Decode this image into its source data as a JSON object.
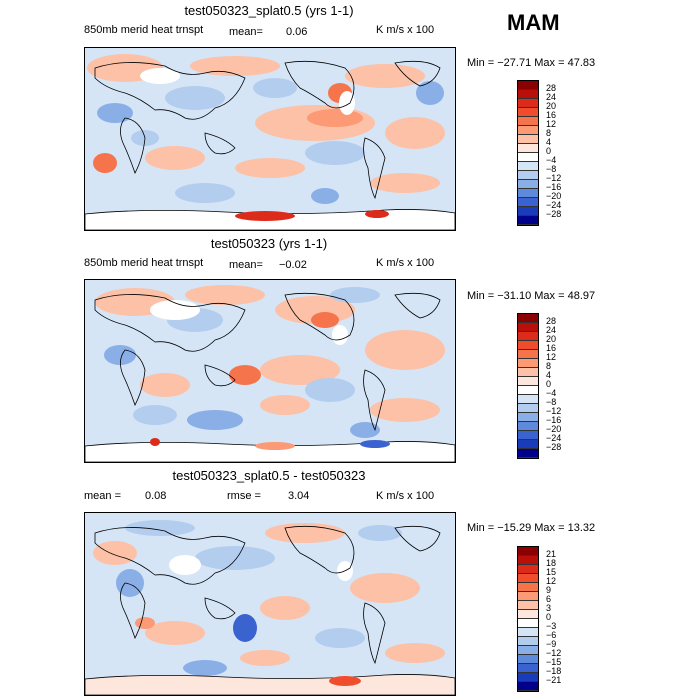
{
  "season": "MAM",
  "panels": [
    {
      "title": "test050323_splat0.5 (yrs 1-1)",
      "left_label": "850mb merid heat trnspt",
      "mean_label": "mean=",
      "mean_value": "0.06",
      "units": "K m/s x 100",
      "minmax": "Min = −27.71 Max =   47.83",
      "levels": [
        "28",
        "24",
        "20",
        "16",
        "12",
        "8",
        "4",
        "0",
        "−4",
        "−8",
        "−12",
        "−16",
        "−20",
        "−24",
        "−28"
      ],
      "colors": [
        "#8b0000",
        "#b80f0a",
        "#dc2b1a",
        "#ef4d2c",
        "#f6744b",
        "#fb9a74",
        "#fcc1a6",
        "#fde7dc",
        "#ffffff",
        "#d5e5f6",
        "#b3cdef",
        "#8aaee6",
        "#5f8adb",
        "#3a63cf",
        "#1a3cbb",
        "#00008b"
      ]
    },
    {
      "title": "test050323 (yrs 1-1)",
      "left_label": "850mb merid heat trnspt",
      "mean_label": "mean=",
      "mean_value": "−0.02",
      "units": "K m/s x 100",
      "minmax": "Min = −31.10 Max =   48.97",
      "levels": [
        "28",
        "24",
        "20",
        "16",
        "12",
        "8",
        "4",
        "0",
        "−4",
        "−8",
        "−12",
        "−16",
        "−20",
        "−24",
        "−28"
      ],
      "colors": [
        "#8b0000",
        "#b80f0a",
        "#dc2b1a",
        "#ef4d2c",
        "#f6744b",
        "#fb9a74",
        "#fcc1a6",
        "#fde7dc",
        "#ffffff",
        "#d5e5f6",
        "#b3cdef",
        "#8aaee6",
        "#5f8adb",
        "#3a63cf",
        "#1a3cbb",
        "#00008b"
      ]
    },
    {
      "title": "test050323_splat0.5 - test050323",
      "left_label": "mean =",
      "mean_label": "",
      "mean_value": "0.08",
      "rmse_label": "rmse =",
      "rmse_value": "3.04",
      "units": "K m/s x 100",
      "minmax": "Min = −15.29 Max =   13.32",
      "levels": [
        "21",
        "18",
        "15",
        "12",
        "9",
        "6",
        "3",
        "0",
        "−3",
        "−6",
        "−9",
        "−12",
        "−15",
        "−18",
        "−21"
      ],
      "colors": [
        "#8b0000",
        "#b80f0a",
        "#dc2b1a",
        "#ef4d2c",
        "#f6744b",
        "#fb9a74",
        "#fcc1a6",
        "#fde7dc",
        "#ffffff",
        "#d5e5f6",
        "#b3cdef",
        "#8aaee6",
        "#5f8adb",
        "#3a63cf",
        "#1a3cbb",
        "#00008b"
      ]
    }
  ]
}
